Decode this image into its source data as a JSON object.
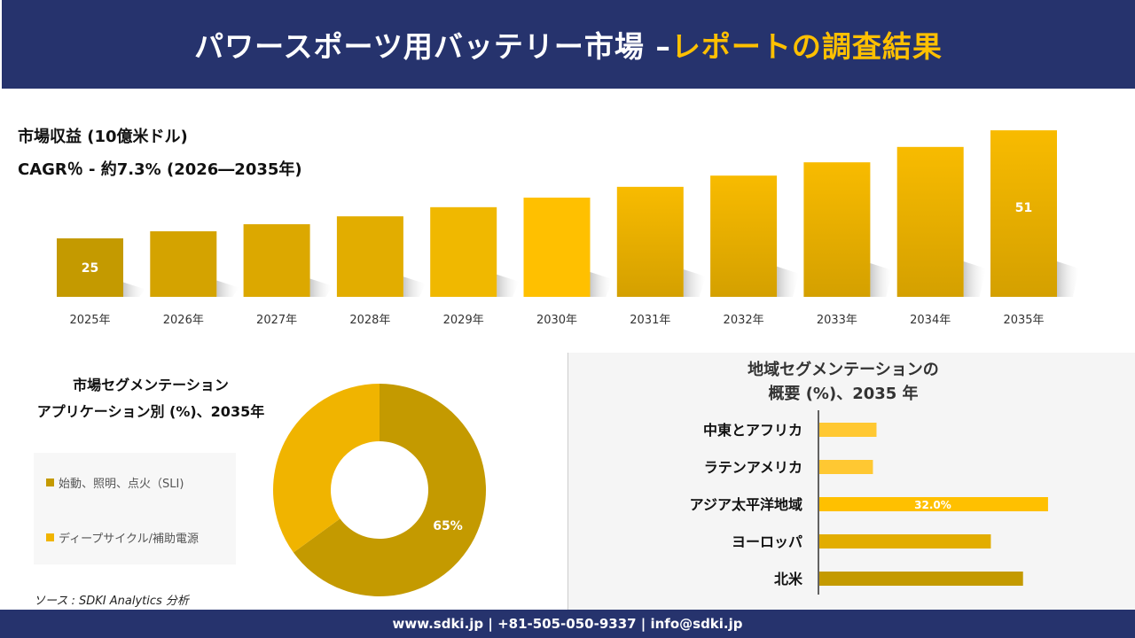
{
  "header": {
    "title_main": "パワースポーツ用バッテリー市場 –",
    "title_accent": "レポートの調査結果"
  },
  "revenue": {
    "title": "市場収益 (10億米ドル)",
    "cagr": "CAGR％ - 約7.3% (2026―2035年)"
  },
  "chart_data": [
    {
      "type": "bar",
      "title": "市場収益 (10億米ドル)",
      "categories": [
        "2025年",
        "2026年",
        "2027年",
        "2028年",
        "2029年",
        "2030年",
        "2031年",
        "2032年",
        "2033年",
        "2034年",
        "2035年"
      ],
      "values": [
        25,
        26.7,
        28.4,
        30.3,
        32.5,
        34.8,
        37.4,
        40.1,
        43.3,
        47.0,
        51
      ],
      "data_labels": {
        "0": "25",
        "10": "51"
      },
      "colors": [
        "#c49a00",
        "#d4a300",
        "#dca800",
        "#e2ad00",
        "#f0b800",
        "#ffc000",
        "#e8b000",
        "#e8b000",
        "#e8b000",
        "#e8b000",
        "#e8b000"
      ],
      "grid": false
    },
    {
      "type": "pie",
      "title": "市場セグメンテーション アプリケーション別 (%)、2035年",
      "labels": [
        "始動、照明、点火（SLI)",
        "ディープサイクル/補助電源"
      ],
      "values": [
        65,
        35
      ],
      "data_labels": [
        "65%",
        ""
      ],
      "colors": [
        "#c49a00",
        "#f0b400"
      ],
      "donut": true,
      "legend": "left"
    },
    {
      "type": "bar",
      "orientation": "horizontal",
      "title": "地域セグメンテーションの 概要 (%)、2035 年",
      "categories": [
        "中東とアフリカ",
        "ラテンアメリカ",
        "アジア太平洋地域",
        "ヨーロッパ",
        "北米"
      ],
      "values": [
        8,
        7.5,
        32,
        24,
        28.5
      ],
      "data_labels": [
        "",
        "",
        "32.0%",
        "",
        ""
      ],
      "colors": [
        "#ffc832",
        "#ffc832",
        "#ffc000",
        "#e2ad00",
        "#c49a00"
      ]
    }
  ],
  "segment": {
    "title_line1": "市場セグメンテーション",
    "title_line2": "アプリケーション別 (%)、2035年"
  },
  "region": {
    "title_line1": "地域セグメンテーションの",
    "title_line2": "概要 (%)、2035 年"
  },
  "source": "ソース : SDKI Analytics 分析",
  "footer": "www.sdki.jp | +81-505-050-9337 | info@sdki.jp"
}
